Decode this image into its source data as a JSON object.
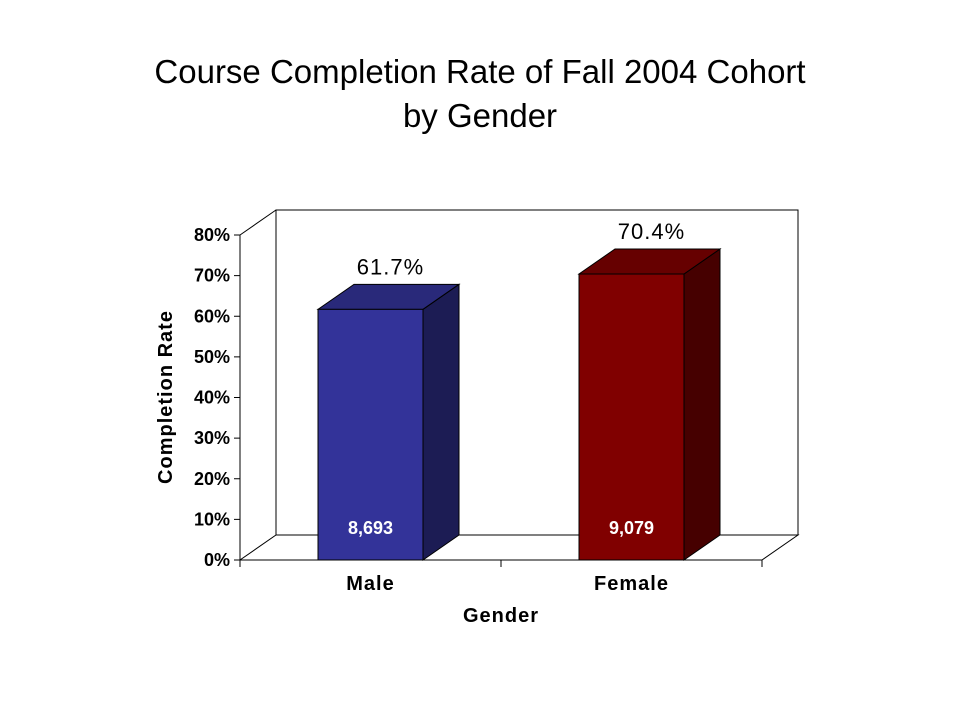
{
  "chart_data": {
    "type": "bar",
    "title": "Course Completion Rate of Fall 2004 Cohort by Gender",
    "title_lines": [
      "Course Completion Rate of Fall 2004 Cohort",
      "by Gender"
    ],
    "xlabel": "Gender",
    "ylabel": "Completion Rate",
    "categories": [
      "Male",
      "Female"
    ],
    "values": [
      61.7,
      70.4
    ],
    "value_labels": [
      "61.7%",
      "70.4%"
    ],
    "counts": [
      "8,693",
      "9,079"
    ],
    "ylim": [
      0,
      80
    ],
    "y_ticks": [
      0,
      10,
      20,
      30,
      40,
      50,
      60,
      70,
      80
    ],
    "y_tick_labels": [
      "0%",
      "10%",
      "20%",
      "30%",
      "40%",
      "50%",
      "60%",
      "70%",
      "80%"
    ],
    "colors": [
      "#333399",
      "#800000"
    ],
    "style": "3d",
    "grid": false,
    "legend": "none"
  }
}
